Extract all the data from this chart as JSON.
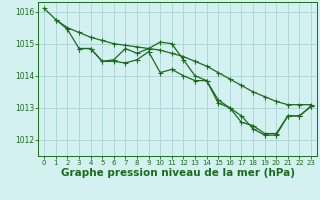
{
  "background_color": "#d4f1f1",
  "grid_color": "#b0d8d8",
  "line_color": "#1a6b1a",
  "xlabel": "Graphe pression niveau de la mer (hPa)",
  "xlabel_fontsize": 7.5,
  "ylim": [
    1011.5,
    1016.3
  ],
  "xlim": [
    -0.5,
    23.5
  ],
  "yticks": [
    1012,
    1013,
    1014,
    1015,
    1016
  ],
  "xticks": [
    0,
    1,
    2,
    3,
    4,
    5,
    6,
    7,
    8,
    9,
    10,
    11,
    12,
    13,
    14,
    15,
    16,
    17,
    18,
    19,
    20,
    21,
    22,
    23
  ],
  "series1_x": [
    0,
    1,
    2,
    3,
    4,
    5,
    6,
    7,
    8,
    9,
    10,
    11,
    12,
    13,
    14,
    15,
    16,
    17,
    18,
    19,
    20,
    21,
    22,
    23
  ],
  "series1_y": [
    1016.1,
    1015.75,
    1015.5,
    1015.35,
    1015.2,
    1015.1,
    1015.0,
    1014.95,
    1014.9,
    1014.85,
    1014.8,
    1014.7,
    1014.6,
    1014.45,
    1014.3,
    1014.1,
    1013.9,
    1013.7,
    1013.5,
    1013.35,
    1013.2,
    1013.1,
    1013.1,
    1013.1
  ],
  "series2_x": [
    1,
    2,
    3,
    4,
    5,
    6,
    7,
    8,
    9,
    10,
    11,
    12,
    13,
    14,
    15,
    16,
    17,
    18,
    19,
    20,
    21,
    22,
    23
  ],
  "series2_y": [
    1015.75,
    1015.45,
    1014.85,
    1014.85,
    1014.45,
    1014.5,
    1014.85,
    1014.7,
    1014.85,
    1015.05,
    1015.0,
    1014.5,
    1014.0,
    1013.85,
    1013.25,
    1013.0,
    1012.55,
    1012.45,
    1012.2,
    1012.2,
    1012.75,
    1012.75,
    1013.05
  ],
  "series3_x": [
    3,
    4,
    5,
    6,
    7,
    8,
    9,
    10,
    11,
    12,
    13,
    14,
    15,
    16,
    17,
    18,
    19,
    20,
    21,
    22,
    23
  ],
  "series3_y": [
    1014.85,
    1014.85,
    1014.45,
    1014.45,
    1014.4,
    1014.5,
    1014.75,
    1014.1,
    1014.2,
    1014.0,
    1013.85,
    1013.85,
    1013.15,
    1013.0,
    1012.75,
    1012.35,
    1012.15,
    1012.15,
    1012.75,
    1012.75,
    1013.05
  ]
}
